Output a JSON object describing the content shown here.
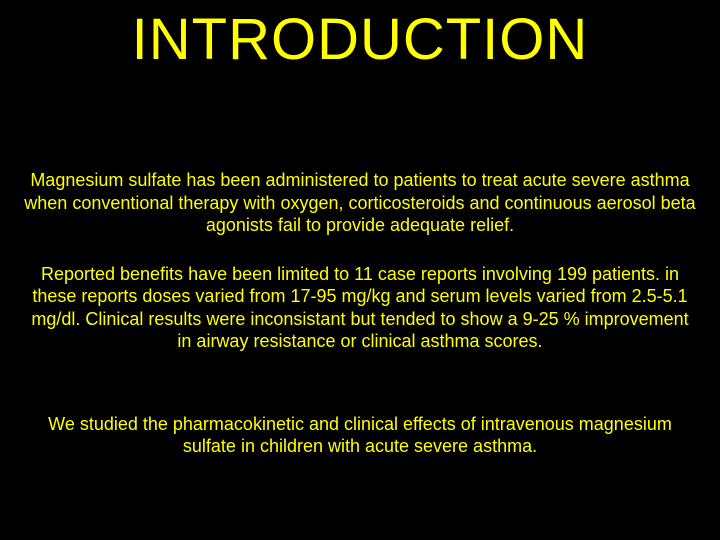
{
  "colors": {
    "background": "#000000",
    "text": "#ffff00"
  },
  "typography": {
    "title_fontsize": 58,
    "body_fontsize": 18,
    "font_family": "Arial"
  },
  "slide": {
    "title": "INTRODUCTION",
    "paragraphs": [
      "Magnesium sulfate has been administered to patients to treat acute severe asthma when conventional therapy with oxygen, corticosteroids and continuous aerosol beta agonists fail to provide adequate relief.",
      "Reported benefits have been limited to 11 case reports involving 199 patients. in these reports doses varied from 17-95 mg/kg and serum levels varied from 2.5-5.1 mg/dl. Clinical results were inconsistant but tended to show a  9-25 % improvement in airway resistance or clinical asthma scores.",
      "We studied the pharmacokinetic and clinical effects of intravenous magnesium sulfate in children with acute severe asthma."
    ]
  }
}
